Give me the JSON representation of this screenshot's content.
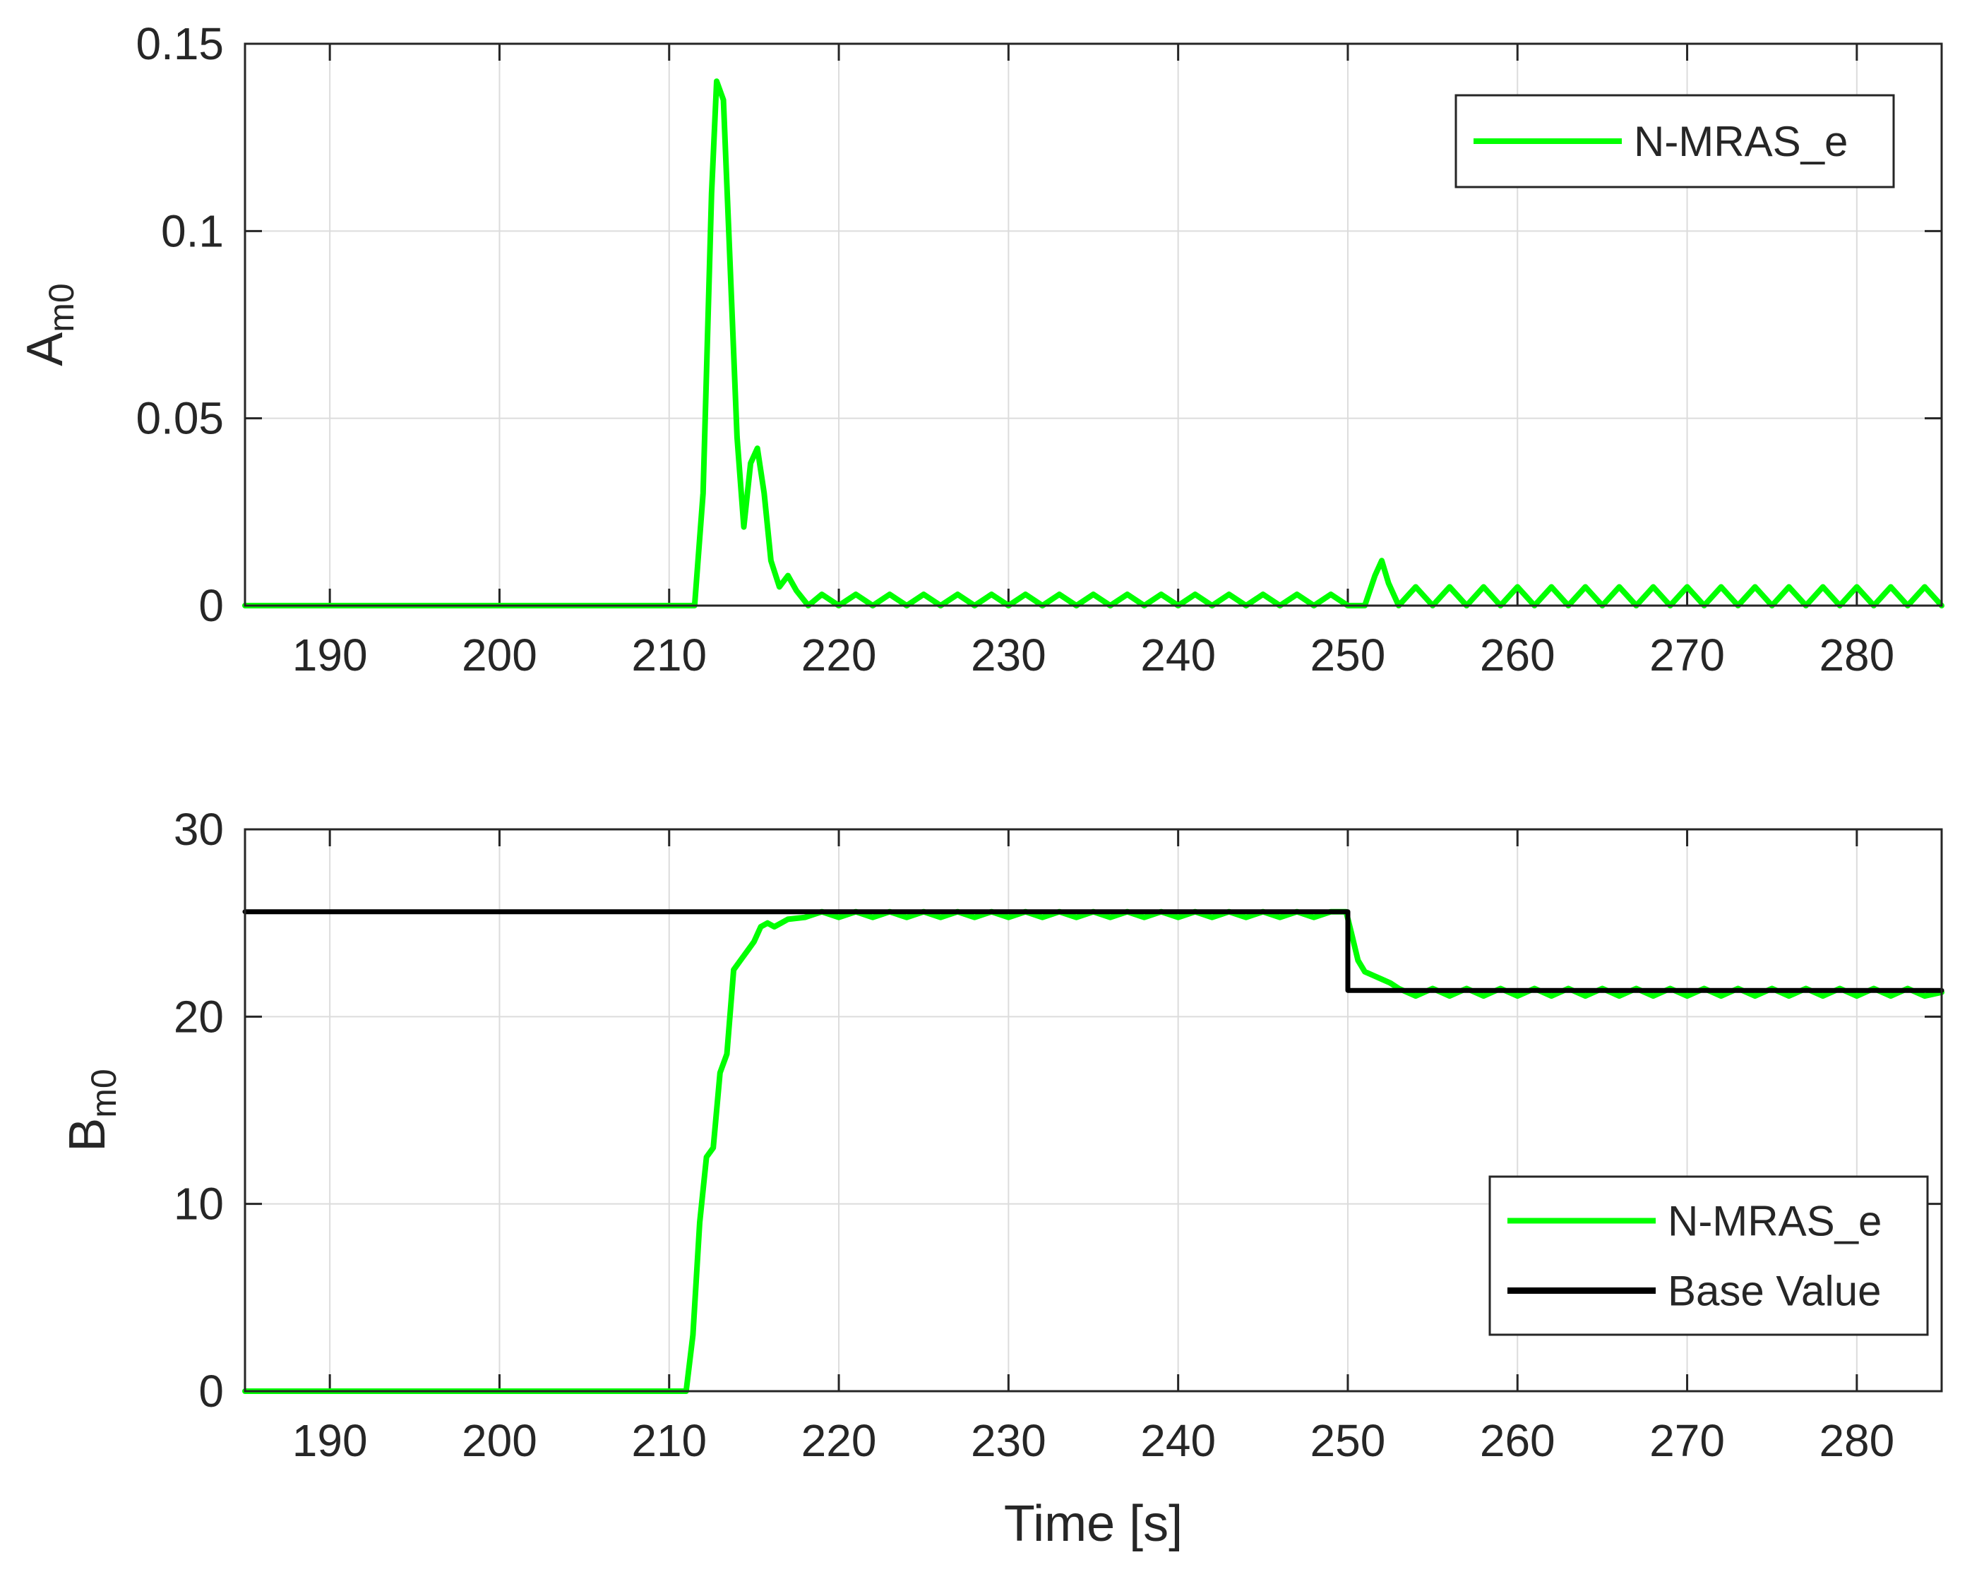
{
  "colors": {
    "nmras": "#00ff00",
    "base": "#000000",
    "grid": "#dcdcdc",
    "axis": "#262626"
  },
  "chart_data": [
    {
      "type": "line",
      "ylabel": "A",
      "ylabel_sub": "m0",
      "xlabel": "",
      "xlim": [
        185,
        285
      ],
      "ylim": [
        0,
        0.15
      ],
      "xticks": [
        190,
        200,
        210,
        220,
        230,
        240,
        250,
        260,
        270,
        280
      ],
      "xtick_labels": [
        "190",
        "200",
        "210",
        "220",
        "230",
        "240",
        "250",
        "260",
        "270",
        "280"
      ],
      "yticks": [
        0,
        0.05,
        0.1,
        0.15
      ],
      "ytick_labels": [
        "0",
        "0.05",
        "0.1",
        "0.15"
      ],
      "grid": true,
      "legend_position": "top-right",
      "series": [
        {
          "name": "N-MRAS_e",
          "color": "#00ff00",
          "x": [
            185,
            211.5,
            212.0,
            212.5,
            212.8,
            213.2,
            213.6,
            214.0,
            214.4,
            214.8,
            215.2,
            215.6,
            216.0,
            216.5,
            217.0,
            217.5,
            218.2,
            219.0,
            220.0,
            221.0,
            222.0,
            223.0,
            224.0,
            225.0,
            226.0,
            227.0,
            228.0,
            229.0,
            230.0,
            231.0,
            232.0,
            233.0,
            234.0,
            235.0,
            236.0,
            237.0,
            238.0,
            239.0,
            240.0,
            241.0,
            242.0,
            243.0,
            244.0,
            245.0,
            246.0,
            247.0,
            248.0,
            249.0,
            250.0,
            251.0,
            251.6,
            252.0,
            252.4,
            253.0,
            254.0,
            255.0,
            256.0,
            257.0,
            258.0,
            259.0,
            260.0,
            261.0,
            262.0,
            263.0,
            264.0,
            265.0,
            266.0,
            267.0,
            268.0,
            269.0,
            270.0,
            271.0,
            272.0,
            273.0,
            274.0,
            275.0,
            276.0,
            277.0,
            278.0,
            279.0,
            280.0,
            281.0,
            282.0,
            283.0,
            284.0,
            285.0
          ],
          "y": [
            0,
            0,
            0.03,
            0.11,
            0.14,
            0.135,
            0.09,
            0.045,
            0.021,
            0.038,
            0.042,
            0.03,
            0.012,
            0.005,
            0.008,
            0.004,
            0.0,
            0.003,
            0.0,
            0.003,
            0.0,
            0.003,
            0.0,
            0.003,
            0.0,
            0.003,
            0.0,
            0.003,
            0.0,
            0.003,
            0.0,
            0.003,
            0.0,
            0.003,
            0.0,
            0.003,
            0.0,
            0.003,
            0.0,
            0.003,
            0.0,
            0.003,
            0.0,
            0.003,
            0.0,
            0.003,
            0.0,
            0.003,
            0.0,
            0.0,
            0.008,
            0.012,
            0.006,
            0.0,
            0.005,
            0.0,
            0.005,
            0.0,
            0.005,
            0.0,
            0.005,
            0.0,
            0.005,
            0.0,
            0.005,
            0.0,
            0.005,
            0.0,
            0.005,
            0.0,
            0.005,
            0.0,
            0.005,
            0.0,
            0.005,
            0.0,
            0.005,
            0.0,
            0.005,
            0.0,
            0.005,
            0.0,
            0.005,
            0.0,
            0.005,
            0.0
          ]
        }
      ]
    },
    {
      "type": "line",
      "ylabel": "B",
      "ylabel_sub": "m0",
      "xlabel": "Time [s]",
      "xlim": [
        185,
        285
      ],
      "ylim": [
        0,
        30
      ],
      "xticks": [
        190,
        200,
        210,
        220,
        230,
        240,
        250,
        260,
        270,
        280
      ],
      "xtick_labels": [
        "190",
        "200",
        "210",
        "220",
        "230",
        "240",
        "250",
        "260",
        "270",
        "280"
      ],
      "yticks": [
        0,
        10,
        20,
        30
      ],
      "ytick_labels": [
        "0",
        "10",
        "20",
        "30"
      ],
      "grid": true,
      "legend_position": "bottom-right",
      "series": [
        {
          "name": "N-MRAS_e",
          "color": "#00ff00",
          "x": [
            185,
            211.0,
            211.4,
            211.8,
            212.2,
            212.6,
            213.0,
            213.4,
            213.8,
            214.2,
            214.6,
            215.0,
            215.4,
            215.8,
            216.2,
            216.6,
            217.0,
            218.0,
            219.0,
            220.0,
            221.0,
            222.0,
            223.0,
            224.0,
            225.0,
            226.0,
            227.0,
            228.0,
            229.0,
            230.0,
            231.0,
            232.0,
            233.0,
            234.0,
            235.0,
            236.0,
            237.0,
            238.0,
            239.0,
            240.0,
            241.0,
            242.0,
            243.0,
            244.0,
            245.0,
            246.0,
            247.0,
            248.0,
            249.0,
            249.9,
            250.2,
            250.6,
            251.0,
            251.5,
            252.0,
            252.5,
            253.0,
            254.0,
            255.0,
            256.0,
            257.0,
            258.0,
            259.0,
            260.0,
            261.0,
            262.0,
            263.0,
            264.0,
            265.0,
            266.0,
            267.0,
            268.0,
            269.0,
            270.0,
            271.0,
            272.0,
            273.0,
            274.0,
            275.0,
            276.0,
            277.0,
            278.0,
            279.0,
            280.0,
            281.0,
            282.0,
            283.0,
            284.0,
            285.0
          ],
          "y": [
            0,
            0,
            3,
            9,
            12.5,
            13,
            17,
            18,
            22.5,
            23,
            23.5,
            24,
            24.8,
            25.0,
            24.8,
            25.0,
            25.2,
            25.3,
            25.6,
            25.3,
            25.6,
            25.3,
            25.6,
            25.3,
            25.6,
            25.3,
            25.6,
            25.3,
            25.6,
            25.3,
            25.6,
            25.3,
            25.6,
            25.3,
            25.6,
            25.3,
            25.6,
            25.3,
            25.6,
            25.3,
            25.6,
            25.3,
            25.6,
            25.3,
            25.6,
            25.3,
            25.6,
            25.3,
            25.6,
            25.6,
            24.5,
            23.0,
            22.4,
            22.2,
            22.0,
            21.8,
            21.5,
            21.1,
            21.5,
            21.1,
            21.5,
            21.1,
            21.5,
            21.1,
            21.5,
            21.1,
            21.5,
            21.1,
            21.5,
            21.1,
            21.5,
            21.1,
            21.5,
            21.1,
            21.5,
            21.1,
            21.5,
            21.1,
            21.5,
            21.1,
            21.5,
            21.1,
            21.5,
            21.1,
            21.5,
            21.1,
            21.5,
            21.1,
            21.3
          ]
        },
        {
          "name": "Base Value",
          "color": "#000000",
          "x": [
            185,
            250,
            250,
            285
          ],
          "y": [
            25.6,
            25.6,
            21.4,
            21.4
          ]
        }
      ]
    }
  ]
}
